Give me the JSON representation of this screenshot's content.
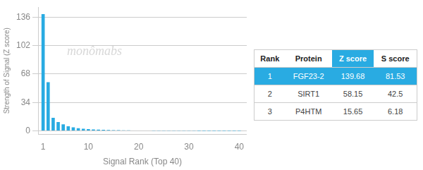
{
  "chart_data": {
    "type": "bar",
    "xlabel": "Signal Rank (Top 40)",
    "ylabel": "Strength of Signal (Z score)",
    "x": [
      1,
      2,
      3,
      4,
      5,
      6,
      7,
      8,
      9,
      10,
      11,
      12,
      13,
      14,
      15,
      16,
      17,
      18,
      19,
      20,
      21,
      22,
      23,
      24,
      25,
      26,
      27,
      28,
      29,
      30,
      31,
      32,
      33,
      34,
      35,
      36,
      37,
      38,
      39,
      40
    ],
    "values": [
      139.68,
      58.15,
      15.65,
      10.5,
      7.8,
      5.5,
      4.2,
      3.2,
      2.5,
      2.0,
      1.7,
      1.4,
      1.2,
      1.0,
      0.85,
      0.72,
      0.62,
      0.53,
      0.46,
      0.4,
      0.35,
      0.3,
      0.26,
      0.23,
      0.2,
      0.17,
      0.15,
      0.13,
      0.11,
      0.09,
      0.08,
      0.07,
      0.06,
      0.055,
      0.05,
      0.045,
      0.04,
      0.035,
      0.03,
      0.025
    ],
    "color": "#29ABE2",
    "xlim": [
      0.0,
      41.5
    ],
    "ylim": [
      -4,
      148
    ],
    "xticks": [
      1,
      10,
      20,
      30,
      40
    ],
    "yticks": [
      0,
      34,
      68,
      102,
      136
    ],
    "grid": true,
    "annotations": [
      "monômabs"
    ],
    "table": [
      [
        "Rank",
        "Protein",
        "Z score",
        "S score"
      ],
      [
        "1",
        "FGF23-2",
        "139.68",
        "81.53"
      ],
      [
        "2",
        "SIRT1",
        "58.15",
        "42.5"
      ],
      [
        "3",
        "P4HTM",
        "15.65",
        "6.18"
      ]
    ]
  }
}
